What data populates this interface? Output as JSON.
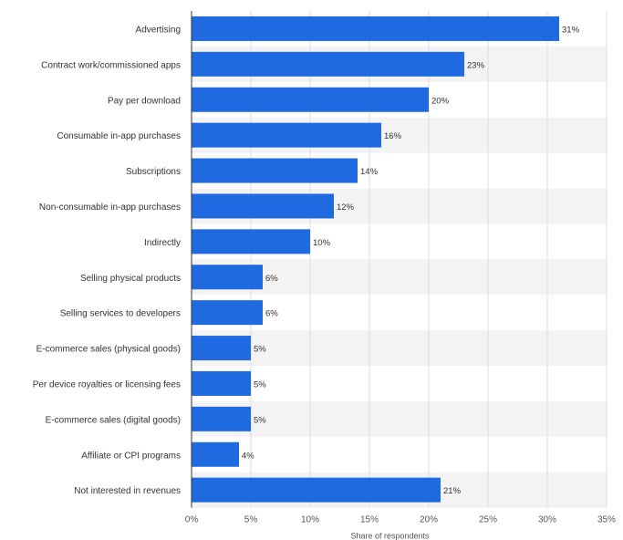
{
  "chart_data": {
    "type": "bar",
    "orientation": "horizontal",
    "title": "",
    "categories": [
      "Advertising",
      "Contract work/commissioned apps",
      "Pay per download",
      "Consumable in-app purchases",
      "Subscriptions",
      "Non-consumable in-app purchases",
      "Indirectly",
      "Selling physical products",
      "Selling services to developers",
      "E-commerce sales (physical goods)",
      "Per device royalties or licensing fees",
      "E-commerce sales (digital goods)",
      "Affiliate or CPI programs",
      "Not interested in revenues"
    ],
    "values": [
      31,
      23,
      20,
      16,
      14,
      12,
      10,
      6,
      6,
      5,
      5,
      5,
      4,
      21
    ],
    "value_labels": [
      "31%",
      "23%",
      "20%",
      "16%",
      "14%",
      "12%",
      "10%",
      "6%",
      "6%",
      "5%",
      "5%",
      "5%",
      "4%",
      "21%"
    ],
    "xlabel": "Share of respondents",
    "ylabel": "",
    "xlim": [
      0,
      35
    ],
    "ticks": [
      0,
      5,
      10,
      15,
      20,
      25,
      30,
      35
    ],
    "tick_labels": [
      "0%",
      "5%",
      "10%",
      "15%",
      "20%",
      "25%",
      "30%",
      "35%"
    ],
    "grid": true,
    "legend": "none",
    "colors": {
      "bar": "#1f6ae0",
      "stripe": "#f3f3f3",
      "grid": "#dcdcdc",
      "axis": "#333333",
      "label_text": "#333333",
      "tick_text": "#555555"
    }
  }
}
